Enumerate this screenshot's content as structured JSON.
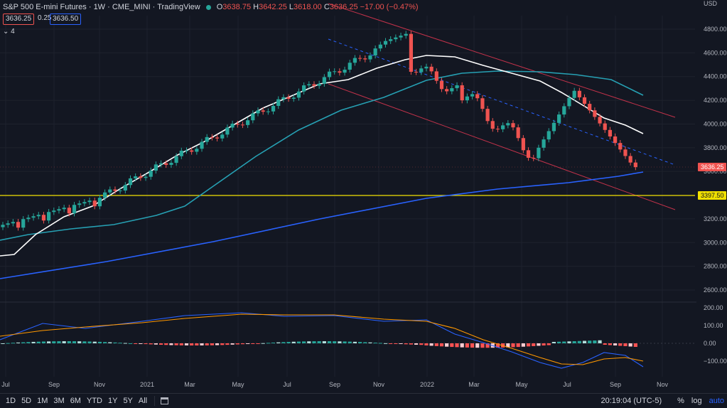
{
  "header": {
    "symbol_title": "S&P 500 E-mini Futures · 1W · CME_MINI · TradingView",
    "ohlc": {
      "open_label": "O",
      "open": "3638.75",
      "high_label": "H",
      "high": "3642.25",
      "low_label": "L",
      "low": "3618.00",
      "close_label": "C",
      "close": "3636.25",
      "change": "−17.00 (−0.47%)"
    },
    "bid": "3636.25",
    "spread": "0.25",
    "ask": "3636.50",
    "collapse_count": "4"
  },
  "price_axis": {
    "currency": "USD",
    "ticks": [
      "4800.00",
      "4600.00",
      "4400.00",
      "4200.00",
      "4000.00",
      "3800.00",
      "3600.00",
      "3400.00",
      "3200.00",
      "3000.00",
      "2800.00",
      "2600.00"
    ],
    "last_price_label": "3636.25",
    "horizontal_line_label": "3397.50"
  },
  "macd_axis": {
    "ticks": [
      "200.00",
      "100.00",
      "0.00",
      "−100.00"
    ]
  },
  "time_axis": {
    "labels": [
      "Jul",
      "Sep",
      "Nov",
      "2021",
      "Mar",
      "May",
      "Jul",
      "Sep",
      "Nov",
      "2022",
      "Mar",
      "May",
      "Jul",
      "Sep",
      "Nov"
    ]
  },
  "bottom_toolbar": {
    "ranges": [
      "1D",
      "5D",
      "1M",
      "3M",
      "6M",
      "YTD",
      "1Y",
      "5Y",
      "All"
    ],
    "time": "20:19:04 (UTC-5)",
    "options": [
      "%",
      "log",
      "auto"
    ]
  },
  "colors": {
    "background": "#131722",
    "up": "#26a69a",
    "down": "#ef5350",
    "ma_white": "#ffffff",
    "ma_cyan": "#26a0b3",
    "ma_blue": "#2962ff",
    "hline": "#f0e000",
    "channel": "#c2324a"
  }
}
